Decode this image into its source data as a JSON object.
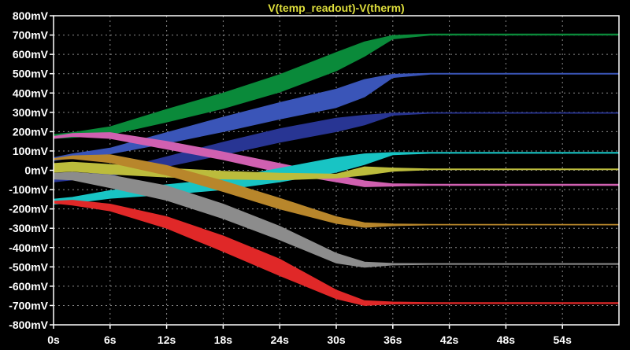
{
  "chart_data": {
    "type": "area",
    "title": "V(temp_readout)-V(therm)",
    "title_color": "#dede3c",
    "background": "#000000",
    "axis_color": "#ffffff",
    "grid": true,
    "xlabel": "",
    "ylabel": "",
    "x_ticks": [
      "0s",
      "6s",
      "12s",
      "18s",
      "24s",
      "30s",
      "36s",
      "42s",
      "48s",
      "54s"
    ],
    "y_ticks": [
      "800mV",
      "700mV",
      "600mV",
      "500mV",
      "400mV",
      "300mV",
      "200mV",
      "100mV",
      "0mV",
      "-100mV",
      "-200mV",
      "-300mV",
      "-400mV",
      "-500mV",
      "-600mV",
      "-700mV",
      "-800mV"
    ],
    "x_unit": "s",
    "y_unit": "mV",
    "xlim": [
      0,
      60
    ],
    "ylim": [
      -800,
      800
    ],
    "series": [
      {
        "color": "#0a8a3a",
        "x": [
          0,
          2,
          6,
          12,
          18,
          24,
          30,
          33,
          36,
          40,
          60
        ],
        "upper": [
          185,
          195,
          225,
          315,
          400,
          495,
          610,
          665,
          698,
          705,
          705
        ],
        "lower": [
          165,
          170,
          185,
          250,
          320,
          405,
          515,
          590,
          680,
          700,
          700
        ]
      },
      {
        "color": "#3a55b8",
        "x": [
          0,
          2,
          6,
          12,
          18,
          24,
          30,
          33,
          36,
          40,
          60
        ],
        "upper": [
          65,
          85,
          115,
          195,
          275,
          350,
          420,
          470,
          497,
          502,
          502
        ],
        "lower": [
          50,
          65,
          85,
          140,
          200,
          265,
          325,
          380,
          480,
          498,
          498
        ]
      },
      {
        "color": "#283593",
        "x": [
          0,
          2,
          6,
          12,
          18,
          24,
          30,
          33,
          36,
          40,
          60
        ],
        "upper": [
          -40,
          -30,
          -5,
          70,
          145,
          215,
          270,
          285,
          296,
          298,
          298
        ],
        "lower": [
          -60,
          -50,
          -30,
          20,
          80,
          145,
          200,
          235,
          285,
          295,
          295
        ]
      },
      {
        "color": "#d060b0",
        "x": [
          0,
          2,
          6,
          12,
          18,
          24,
          30,
          33,
          36,
          40,
          60
        ],
        "upper": [
          175,
          190,
          195,
          150,
          95,
          35,
          -25,
          -55,
          -70,
          -72,
          -72
        ],
        "lower": [
          165,
          175,
          165,
          110,
          55,
          -10,
          -60,
          -85,
          -82,
          -78,
          -78
        ]
      },
      {
        "color": "#18c4c4",
        "x": [
          0,
          2,
          6,
          12,
          18,
          24,
          30,
          33,
          36,
          40,
          60
        ],
        "upper": [
          -150,
          -140,
          -105,
          -75,
          -45,
          10,
          65,
          85,
          92,
          93,
          93
        ],
        "lower": [
          -175,
          -170,
          -145,
          -125,
          -100,
          -60,
          -10,
          30,
          80,
          88,
          88
        ]
      },
      {
        "color": "#bcbc3c",
        "x": [
          0,
          2,
          6,
          12,
          18,
          24,
          30,
          33,
          36,
          40,
          60
        ],
        "upper": [
          35,
          42,
          30,
          10,
          -5,
          -15,
          -20,
          18,
          12,
          7,
          7
        ],
        "lower": [
          -10,
          -5,
          -20,
          -35,
          -45,
          -50,
          -40,
          -25,
          -5,
          3,
          3
        ]
      },
      {
        "color": "#b8862b",
        "x": [
          0,
          2,
          6,
          12,
          18,
          24,
          30,
          33,
          36,
          40,
          60
        ],
        "upper": [
          60,
          75,
          80,
          25,
          -55,
          -145,
          -240,
          -272,
          -278,
          -280,
          -280
        ],
        "lower": [
          55,
          60,
          40,
          -25,
          -110,
          -200,
          -275,
          -295,
          -287,
          -283,
          -283
        ]
      },
      {
        "color": "#8c8c8c",
        "x": [
          0,
          2,
          6,
          12,
          18,
          24,
          30,
          33,
          36,
          40,
          60
        ],
        "upper": [
          -15,
          -10,
          -25,
          -80,
          -175,
          -290,
          -430,
          -475,
          -482,
          -483,
          -483
        ],
        "lower": [
          -45,
          -50,
          -90,
          -155,
          -250,
          -360,
          -480,
          -502,
          -490,
          -487,
          -487
        ]
      },
      {
        "color": "#e02828",
        "x": [
          0,
          2,
          6,
          12,
          18,
          24,
          30,
          33,
          36,
          40,
          60
        ],
        "upper": [
          -160,
          -155,
          -175,
          -240,
          -340,
          -460,
          -620,
          -675,
          -682,
          -685,
          -685
        ],
        "lower": [
          -170,
          -180,
          -210,
          -300,
          -420,
          -545,
          -665,
          -700,
          -692,
          -690,
          -690
        ]
      }
    ]
  }
}
